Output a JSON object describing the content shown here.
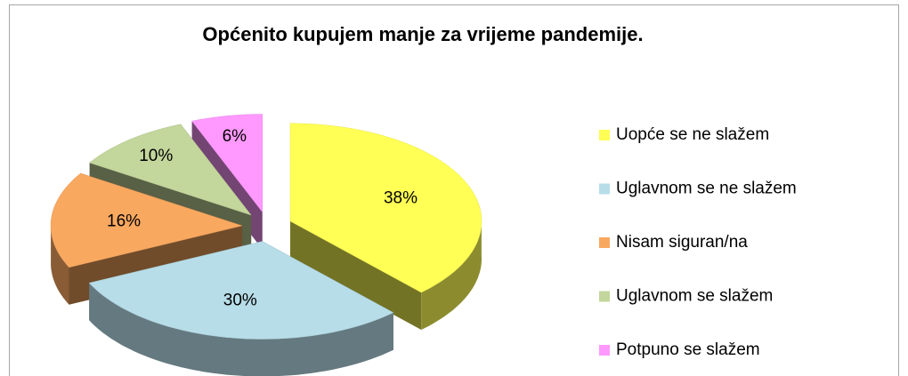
{
  "chart_data": {
    "type": "pie",
    "title": "Općenito kupujem manje za vrijeme pandemije.",
    "categories": [
      "Uopće se ne slažem",
      "Uglavnom se ne slažem",
      "Nisam siguran/na",
      "Uglavnom se slažem",
      "Potpuno se slažem"
    ],
    "values": [
      38,
      30,
      16,
      10,
      6
    ],
    "value_labels": [
      "38%",
      "30%",
      "16%",
      "10%",
      "6%"
    ],
    "colors": [
      "#ffff55",
      "#b7dde8",
      "#f9a860",
      "#c3d69b",
      "#ff99ff"
    ],
    "legend": "right"
  }
}
